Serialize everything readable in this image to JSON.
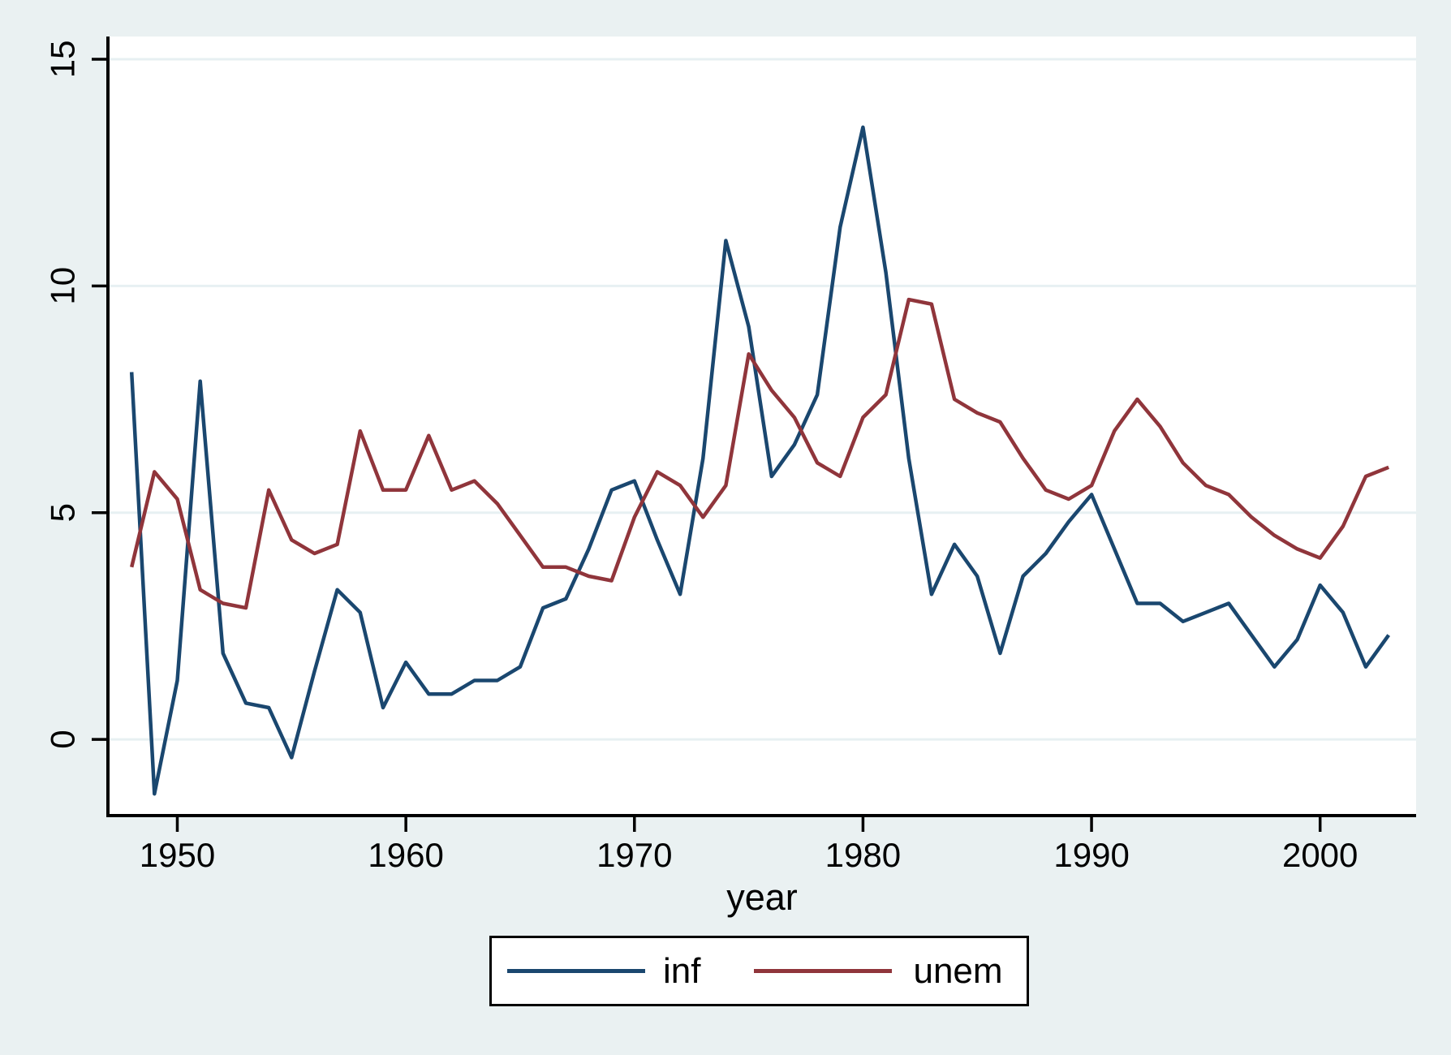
{
  "figure": {
    "background_color": "#eaf1f2",
    "plot_background_color": "#ffffff",
    "grid_color": "#e7f0f2",
    "axis_color": "#000000",
    "legend_border_color": "#000000"
  },
  "chart_data": {
    "type": "line",
    "title": "",
    "xlabel": "year",
    "ylabel": "",
    "x": [
      1948,
      1949,
      1950,
      1951,
      1952,
      1953,
      1954,
      1955,
      1956,
      1957,
      1958,
      1959,
      1960,
      1961,
      1962,
      1963,
      1964,
      1965,
      1966,
      1967,
      1968,
      1969,
      1970,
      1971,
      1972,
      1973,
      1974,
      1975,
      1976,
      1977,
      1978,
      1979,
      1980,
      1981,
      1982,
      1983,
      1984,
      1985,
      1986,
      1987,
      1988,
      1989,
      1990,
      1991,
      1992,
      1993,
      1994,
      1995,
      1996,
      1997,
      1998,
      1999,
      2000,
      2001,
      2002,
      2003
    ],
    "series": [
      {
        "name": "inf",
        "color": "#1a476f",
        "values": [
          8.1,
          -1.2,
          1.3,
          7.9,
          1.9,
          0.8,
          0.7,
          -0.4,
          1.5,
          3.3,
          2.8,
          0.7,
          1.7,
          1.0,
          1.0,
          1.3,
          1.3,
          1.6,
          2.9,
          3.1,
          4.2,
          5.5,
          5.7,
          4.4,
          3.2,
          6.2,
          11.0,
          9.1,
          5.8,
          6.5,
          7.6,
          11.3,
          13.5,
          10.3,
          6.2,
          3.2,
          4.3,
          3.6,
          1.9,
          3.6,
          4.1,
          4.8,
          5.4,
          4.2,
          3.0,
          3.0,
          2.6,
          2.8,
          3.0,
          2.3,
          1.6,
          2.2,
          3.4,
          2.8,
          1.6,
          2.3
        ]
      },
      {
        "name": "unem",
        "color": "#90353b",
        "values": [
          3.8,
          5.9,
          5.3,
          3.3,
          3.0,
          2.9,
          5.5,
          4.4,
          4.1,
          4.3,
          6.8,
          5.5,
          5.5,
          6.7,
          5.5,
          5.7,
          5.2,
          4.5,
          3.8,
          3.8,
          3.6,
          3.5,
          4.9,
          5.9,
          5.6,
          4.9,
          5.6,
          8.5,
          7.7,
          7.1,
          6.1,
          5.8,
          7.1,
          7.6,
          9.7,
          9.6,
          7.5,
          7.2,
          7.0,
          6.2,
          5.5,
          5.3,
          5.6,
          6.8,
          7.5,
          6.9,
          6.1,
          5.6,
          5.4,
          4.9,
          4.5,
          4.2,
          4.0,
          4.7,
          5.8,
          6.0
        ]
      }
    ],
    "xticks": [
      1950,
      1960,
      1970,
      1980,
      1990,
      2000
    ],
    "yticks": [
      0,
      5,
      10,
      15
    ],
    "xlim": [
      1947.0,
      2004.2
    ],
    "ylim": [
      -1.68,
      15.5
    ],
    "grid": "horizontal",
    "legend_position": "bottom-center"
  }
}
